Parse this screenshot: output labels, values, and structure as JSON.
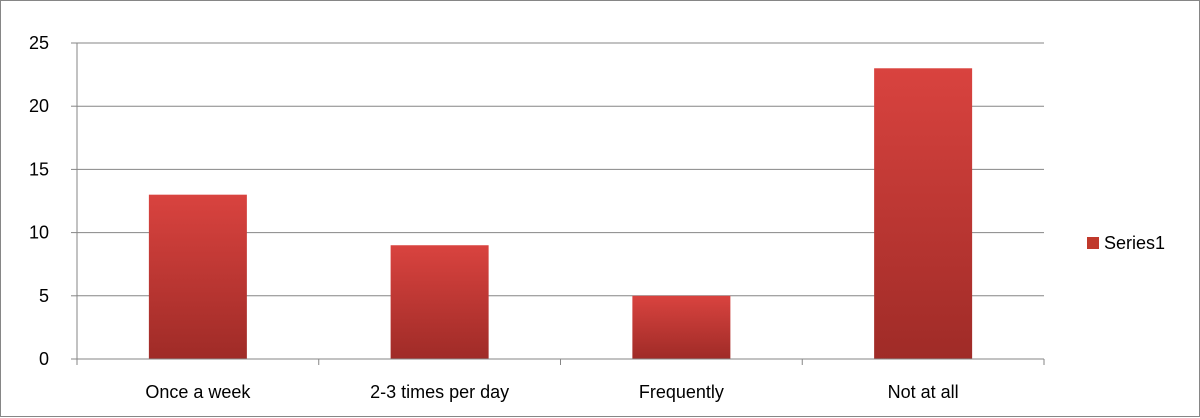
{
  "chart_data": {
    "type": "bar",
    "categories": [
      "Once a week",
      "2-3 times per day",
      "Frequently",
      "Not at all"
    ],
    "series": [
      {
        "name": "Series1",
        "values": [
          13,
          9,
          5,
          23
        ],
        "color": "#c0392b"
      }
    ],
    "title": "",
    "xlabel": "",
    "ylabel": "",
    "ylim": [
      0,
      25
    ],
    "yticks": [
      0,
      5,
      10,
      15,
      20,
      25
    ],
    "ytick_labels": [
      "0",
      "5",
      "10",
      "15",
      "20",
      "25"
    ],
    "grid": true,
    "legend_position": "right"
  },
  "colors": {
    "bar_top": "#d9433f",
    "bar_bottom": "#9f2b27",
    "gridline": "#868686",
    "axis": "#868686"
  }
}
